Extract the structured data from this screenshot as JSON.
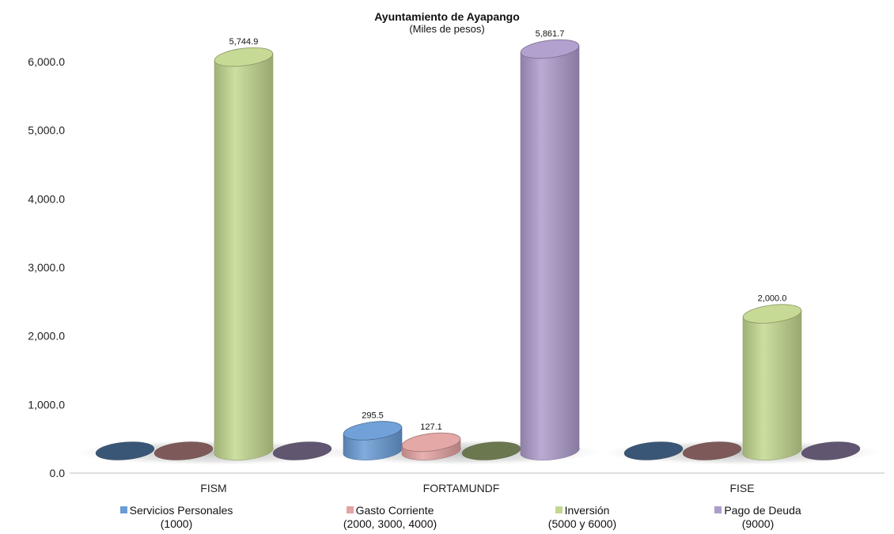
{
  "chart_data": {
    "type": "bar",
    "title": "Ayuntamiento de Ayapango",
    "subtitle": "(Miles de pesos)",
    "categories": [
      "FISM",
      "FORTAMUNDF",
      "FISE"
    ],
    "ylim": [
      0,
      6000
    ],
    "yticks": [
      0,
      1000,
      2000,
      3000,
      4000,
      5000,
      6000
    ],
    "ytick_labels": [
      "0.0",
      "1,000.0",
      "2,000.0",
      "3,000.0",
      "4,000.0",
      "5,000.0",
      "6,000.0"
    ],
    "grid": false,
    "legend_position": "bottom",
    "series": [
      {
        "name": "Servicios Personales",
        "name_line2": "(1000)",
        "color": "#6a9cd6",
        "values": [
          0,
          295.5,
          0
        ],
        "labels": [
          "",
          "295.5",
          ""
        ]
      },
      {
        "name": "Gasto Corriente",
        "name_line2": "(2000, 3000, 4000)",
        "color": "#e3a3a2",
        "values": [
          0,
          127.1,
          0
        ],
        "labels": [
          "",
          "127.1",
          ""
        ]
      },
      {
        "name": "Inversión",
        "name_line2": "(5000 y 6000)",
        "color": "#c3d88f",
        "values": [
          5744.9,
          0,
          2000.0
        ],
        "labels": [
          "5,744.9",
          "",
          "2,000.0"
        ]
      },
      {
        "name": "Pago de Deuda",
        "name_line2": "(9000)",
        "color": "#ae9ccc",
        "values": [
          0,
          5861.7,
          0
        ],
        "labels": [
          "",
          "5,861.7",
          ""
        ]
      }
    ]
  }
}
